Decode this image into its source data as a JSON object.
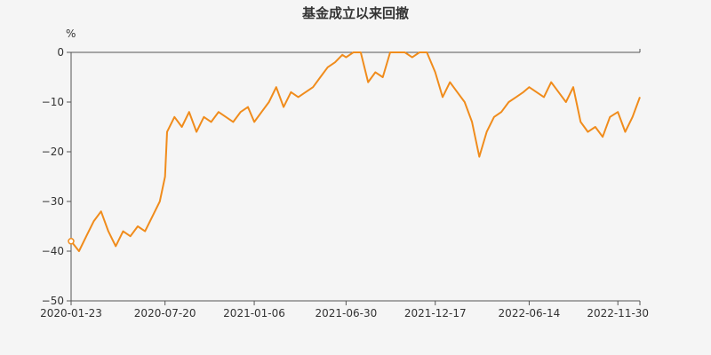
{
  "chart_data": {
    "type": "line",
    "title": "基金成立以来回撤",
    "ylabel": "%",
    "xlabel": "",
    "ylim": [
      -50,
      0
    ],
    "y_ticks": [
      0,
      -10,
      -20,
      -30,
      -40,
      -50
    ],
    "y_tick_labels": [
      "0",
      "−10",
      "−20",
      "−30",
      "−40",
      "−50"
    ],
    "x_tick_labels": [
      "2020-01-23",
      "2020-07-20",
      "2021-01-06",
      "2021-06-30",
      "2021-12-17",
      "2022-06-14",
      "2022-11-30"
    ],
    "grid": false,
    "legend": "none",
    "series_color": "#f08c1c",
    "series": [
      {
        "x": [
          "2020-01-23",
          "2020-02-07",
          "2020-02-21",
          "2020-03-06",
          "2020-03-20",
          "2020-04-03",
          "2020-04-17",
          "2020-05-01",
          "2020-05-15",
          "2020-05-29",
          "2020-06-12",
          "2020-06-26",
          "2020-07-10",
          "2020-07-20",
          "2020-07-24",
          "2020-08-07",
          "2020-08-21",
          "2020-09-04",
          "2020-09-18",
          "2020-10-02",
          "2020-10-16",
          "2020-10-30",
          "2020-11-13",
          "2020-11-27",
          "2020-12-11",
          "2020-12-25",
          "2021-01-06",
          "2021-01-20",
          "2021-02-03",
          "2021-02-17",
          "2021-03-03",
          "2021-03-17",
          "2021-03-31",
          "2021-04-14",
          "2021-04-28",
          "2021-05-12",
          "2021-05-26",
          "2021-06-09",
          "2021-06-23",
          "2021-06-30",
          "2021-07-14",
          "2021-07-28",
          "2021-08-11",
          "2021-08-25",
          "2021-09-08",
          "2021-09-22",
          "2021-10-06",
          "2021-10-20",
          "2021-11-03",
          "2021-11-17",
          "2021-12-01",
          "2021-12-17",
          "2021-12-31",
          "2022-01-14",
          "2022-01-28",
          "2022-02-11",
          "2022-02-25",
          "2022-03-11",
          "2022-03-25",
          "2022-04-08",
          "2022-04-22",
          "2022-05-06",
          "2022-05-20",
          "2022-06-03",
          "2022-06-14",
          "2022-06-28",
          "2022-07-12",
          "2022-07-26",
          "2022-08-09",
          "2022-08-23",
          "2022-09-06",
          "2022-09-20",
          "2022-10-04",
          "2022-10-18",
          "2022-11-01",
          "2022-11-15",
          "2022-11-30",
          "2022-12-14",
          "2022-12-28",
          "2023-01-11"
        ],
        "values": [
          -38,
          -40,
          -37,
          -34,
          -32,
          -36,
          -39,
          -36,
          -37,
          -35,
          -36,
          -33,
          -30,
          -25,
          -16,
          -13,
          -15,
          -12,
          -16,
          -13,
          -14,
          -12,
          -13,
          -14,
          -12,
          -11,
          -14,
          -12,
          -10,
          -7,
          -11,
          -8,
          -9,
          -8,
          -7,
          -5,
          -3,
          -2,
          -0.5,
          -1,
          0,
          0,
          -6,
          -4,
          -5,
          0,
          0,
          0,
          -1,
          0,
          0,
          -4,
          -9,
          -6,
          -8,
          -10,
          -14,
          -21,
          -16,
          -13,
          -12,
          -10,
          -9,
          -8,
          -7,
          -8,
          -9,
          -6,
          -8,
          -10,
          -7,
          -14,
          -16,
          -15,
          -17,
          -13,
          -12,
          -16,
          -13,
          -9
        ]
      }
    ]
  }
}
